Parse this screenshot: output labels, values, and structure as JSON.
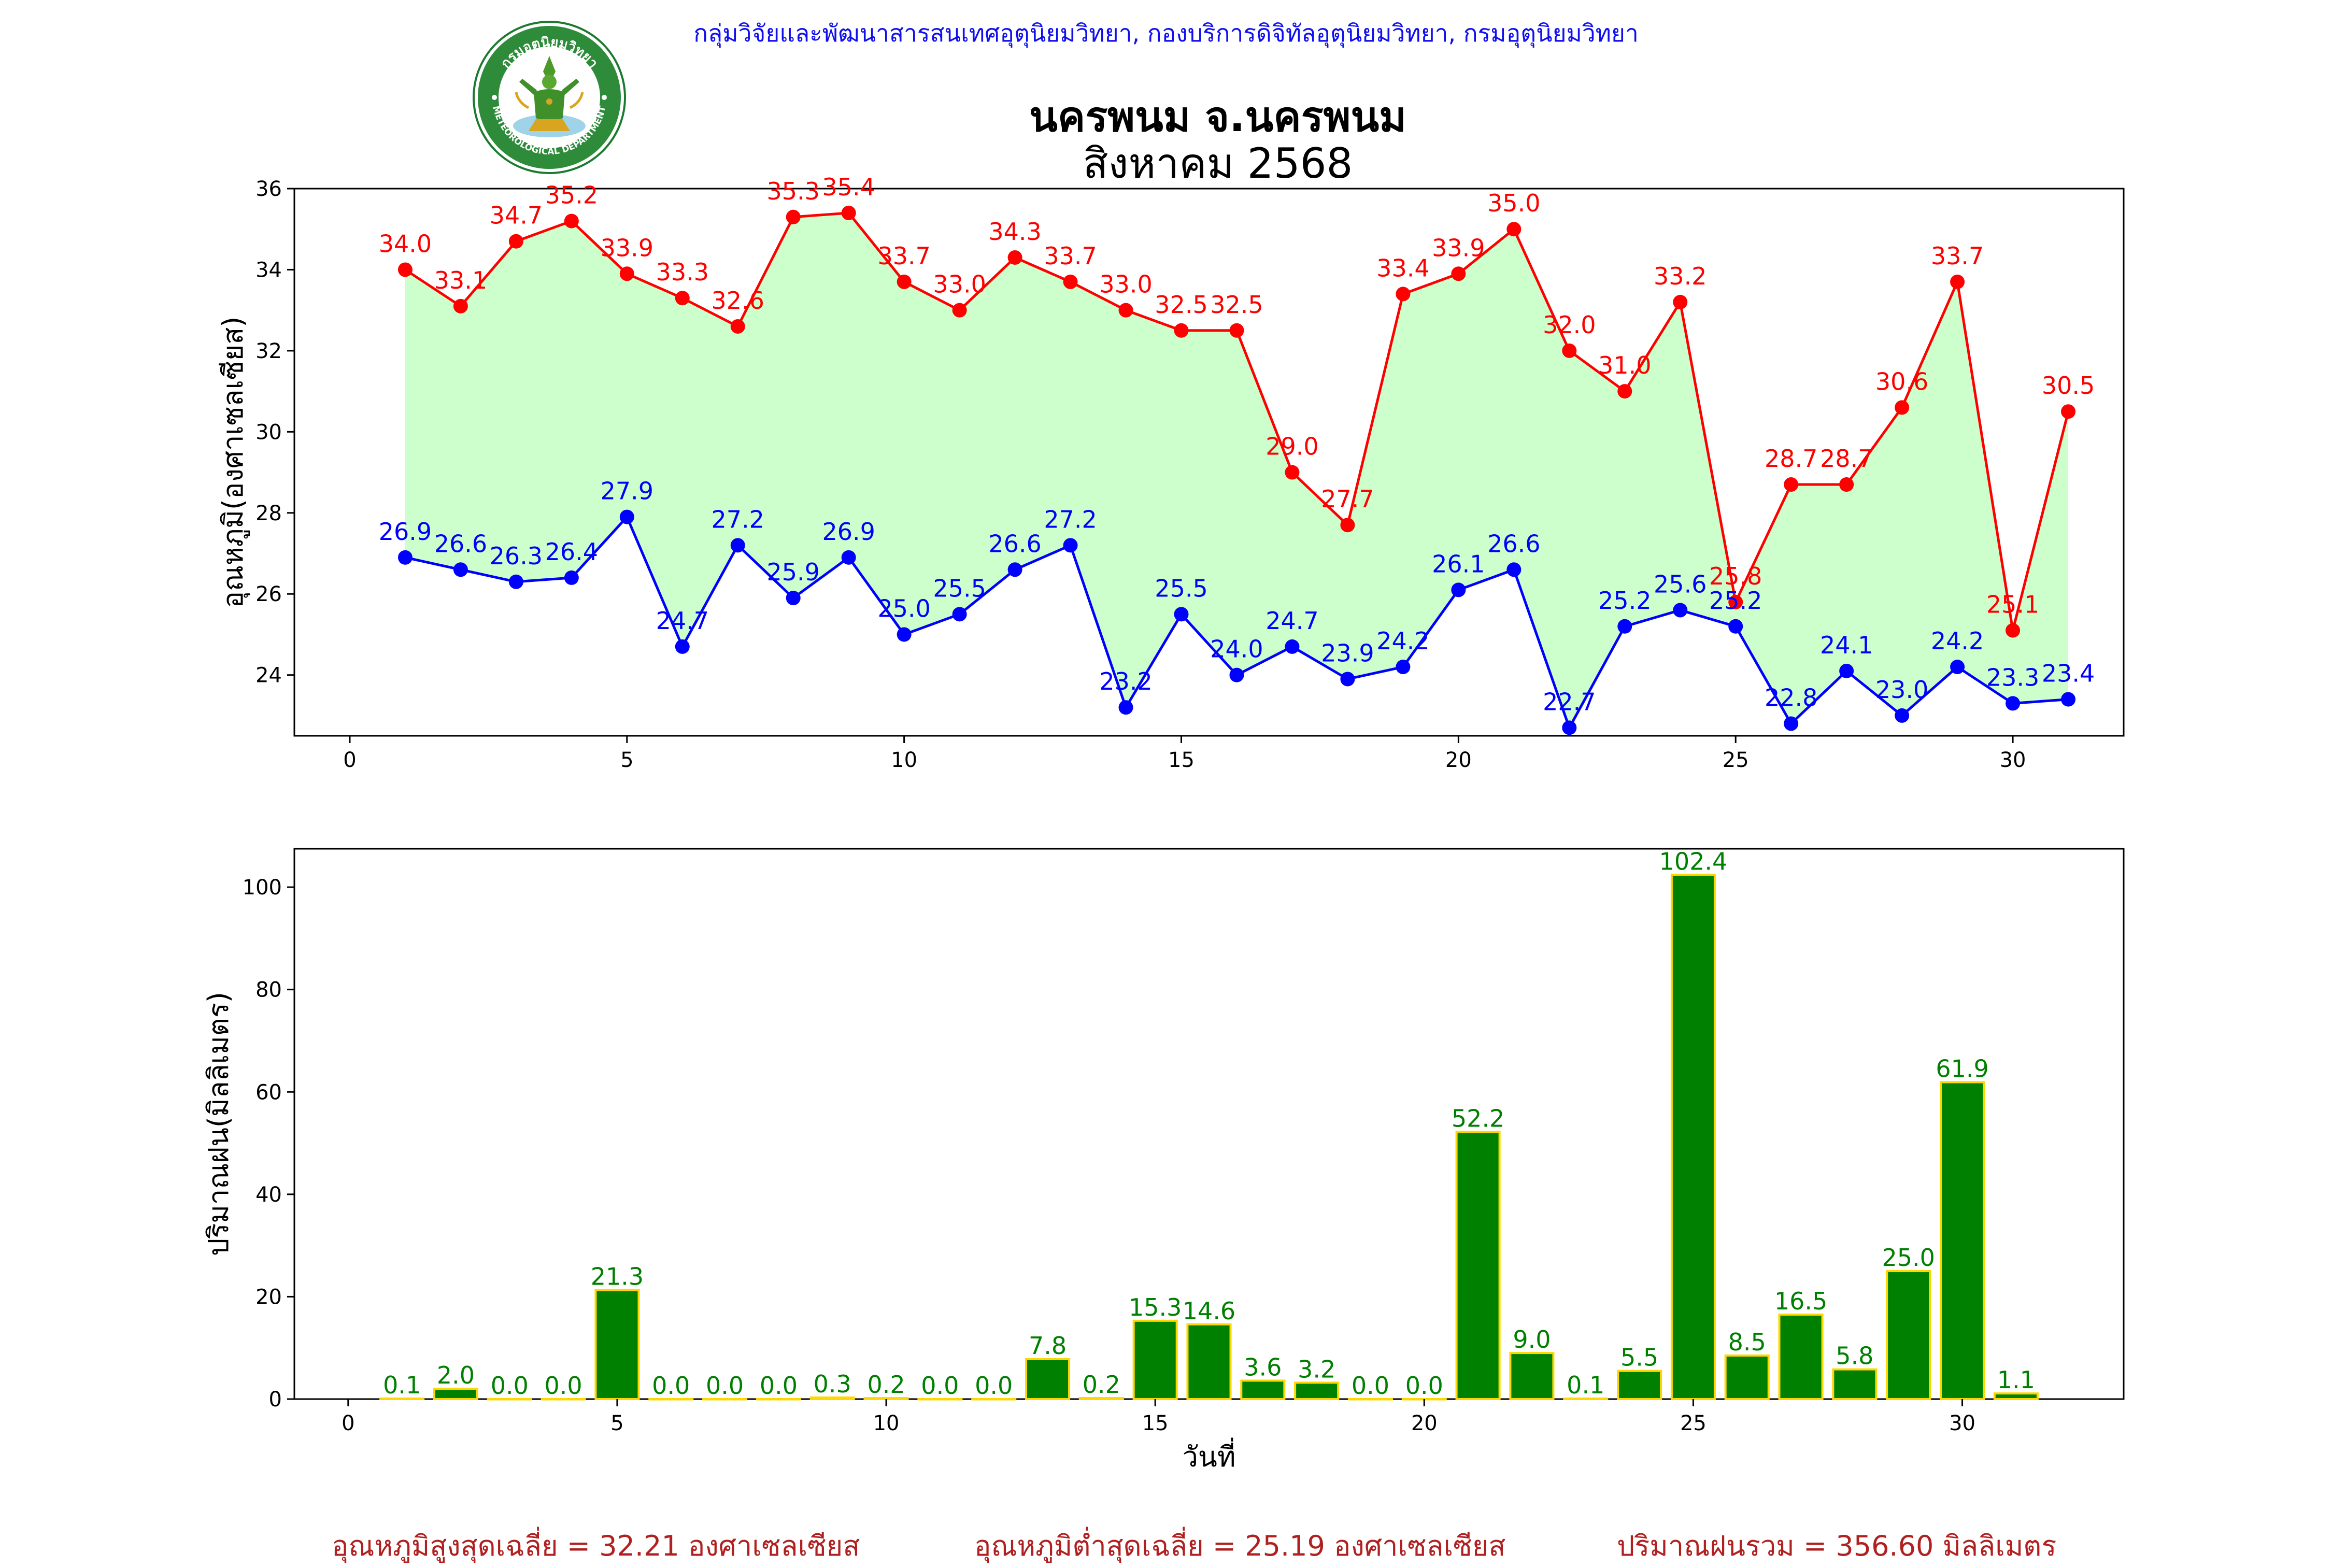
{
  "header": {
    "source": "กลุ่มวิจัยและพัฒนาสารสนเทศอุตุนิยมวิทยา, กองบริการดิจิทัลอุตุนิยมวิทยา, กรมอุตุนิยมวิทยา",
    "logo_text_top": "กรมอุตุนิยมวิทยา",
    "logo_text_bottom": "METEOROLOGICAL DEPARTMENT"
  },
  "title": {
    "line1": "นครพนม จ.นครพนม",
    "line2": "สิงหาคม 2568"
  },
  "colors": {
    "tmax": "#ff0000",
    "tmin": "#0000ff",
    "fill": "#ccffcc",
    "rain_bar": "#008000",
    "rain_edge": "#ffd700",
    "rain_label": "#008000",
    "summary": "#b02020"
  },
  "chart_data": [
    {
      "type": "line",
      "ylabel": "อุณหภูมิ(องศาเซลเซียส)",
      "xlabel": "",
      "xlim": [
        -1,
        32
      ],
      "ylim": [
        22.5,
        36
      ],
      "xticks": [
        0,
        5,
        10,
        15,
        20,
        25,
        30
      ],
      "yticks": [
        24,
        26,
        28,
        30,
        32,
        34,
        36
      ],
      "fill_between": true,
      "x": [
        1,
        2,
        3,
        4,
        5,
        6,
        7,
        8,
        9,
        10,
        11,
        12,
        13,
        14,
        15,
        16,
        17,
        18,
        19,
        20,
        21,
        22,
        23,
        24,
        25,
        26,
        27,
        28,
        29,
        30,
        31
      ],
      "series": [
        {
          "key": "tmax",
          "values": [
            34.0,
            33.1,
            34.7,
            35.2,
            33.9,
            33.3,
            32.6,
            35.3,
            35.4,
            33.7,
            33.0,
            34.3,
            33.7,
            33.0,
            32.5,
            32.5,
            29.0,
            27.7,
            33.4,
            33.9,
            35.0,
            32.0,
            31.0,
            33.2,
            25.8,
            28.7,
            28.7,
            30.6,
            33.7,
            25.1,
            30.5
          ],
          "labels": [
            "34.0",
            "33.1",
            "34.7",
            "35.2",
            "33.9",
            "33.3",
            "32.6",
            "35.3",
            "35.4",
            "33.7",
            "33.0",
            "34.3",
            "33.7",
            "33.0",
            "32.5",
            "32.5",
            "29.0",
            "27.7",
            "33.4",
            "33.9",
            "35.0",
            "32.0",
            "31.0",
            "33.2",
            "25.8",
            "28.7",
            "28.7",
            "30.6",
            "33.7",
            "25.1",
            "30.5"
          ]
        },
        {
          "key": "tmin",
          "values": [
            26.9,
            26.6,
            26.3,
            26.4,
            27.9,
            24.7,
            27.2,
            25.9,
            26.9,
            25.0,
            25.5,
            26.6,
            27.2,
            23.2,
            25.5,
            24.0,
            24.7,
            23.9,
            24.2,
            26.1,
            26.6,
            22.7,
            25.2,
            25.6,
            25.2,
            22.8,
            24.1,
            23.0,
            24.2,
            23.3,
            23.4
          ],
          "labels": [
            "26.9",
            "26.6",
            "26.3",
            "26.4",
            "27.9",
            "24.7",
            "27.2",
            "25.9",
            "26.9",
            "25.0",
            "25.5",
            "26.6",
            "27.2",
            "23.2",
            "25.5",
            "24.0",
            "24.7",
            "23.9",
            "24.2",
            "26.1",
            "26.6",
            "22.7",
            "25.2",
            "25.6",
            "25.2",
            "22.8",
            "24.1",
            "23.0",
            "24.2",
            "23.3",
            "23.4"
          ]
        }
      ]
    },
    {
      "type": "bar",
      "ylabel": "ปริมาณฝน(มิลลิเมตร)",
      "xlabel": "วันที่",
      "xlim": [
        -1,
        33
      ],
      "ylim": [
        0,
        107.5
      ],
      "xticks": [
        0,
        5,
        10,
        15,
        20,
        25,
        30
      ],
      "yticks": [
        0,
        20,
        40,
        60,
        80,
        100
      ],
      "x": [
        1,
        2,
        3,
        4,
        5,
        6,
        7,
        8,
        9,
        10,
        11,
        12,
        13,
        14,
        15,
        16,
        17,
        18,
        19,
        20,
        21,
        22,
        23,
        24,
        25,
        26,
        27,
        28,
        29,
        30,
        31
      ],
      "values": [
        0.1,
        2.0,
        0.0,
        0.0,
        21.3,
        0.0,
        0.0,
        0.0,
        0.3,
        0.2,
        0.0,
        0.0,
        7.8,
        0.2,
        15.3,
        14.6,
        3.6,
        3.2,
        0.0,
        0.0,
        52.2,
        9.0,
        0.1,
        5.5,
        102.4,
        8.5,
        16.5,
        5.8,
        25.0,
        61.9,
        1.1
      ],
      "labels": [
        "0.1",
        "2.0",
        "0.0",
        "0.0",
        "21.3",
        "0.0",
        "0.0",
        "0.0",
        "0.3",
        "0.2",
        "0.0",
        "0.0",
        "7.8",
        "0.2",
        "15.3",
        "14.6",
        "3.6",
        "3.2",
        "0.0",
        "0.0",
        "52.2",
        "9.0",
        "0.1",
        "5.5",
        "102.4",
        "8.5",
        "16.5",
        "5.8",
        "25.0",
        "61.9",
        "1.1"
      ]
    }
  ],
  "summary": {
    "tmax_avg": "อุณหภูมิสูงสุดเฉลี่ย = 32.21 องศาเซลเซียส",
    "tmin_avg": "อุณหภูมิต่ำสุดเฉลี่ย = 25.19 องศาเซลเซียส",
    "rain_total": "ปริมาณฝนรวม = 356.60 มิลลิเมตร"
  }
}
